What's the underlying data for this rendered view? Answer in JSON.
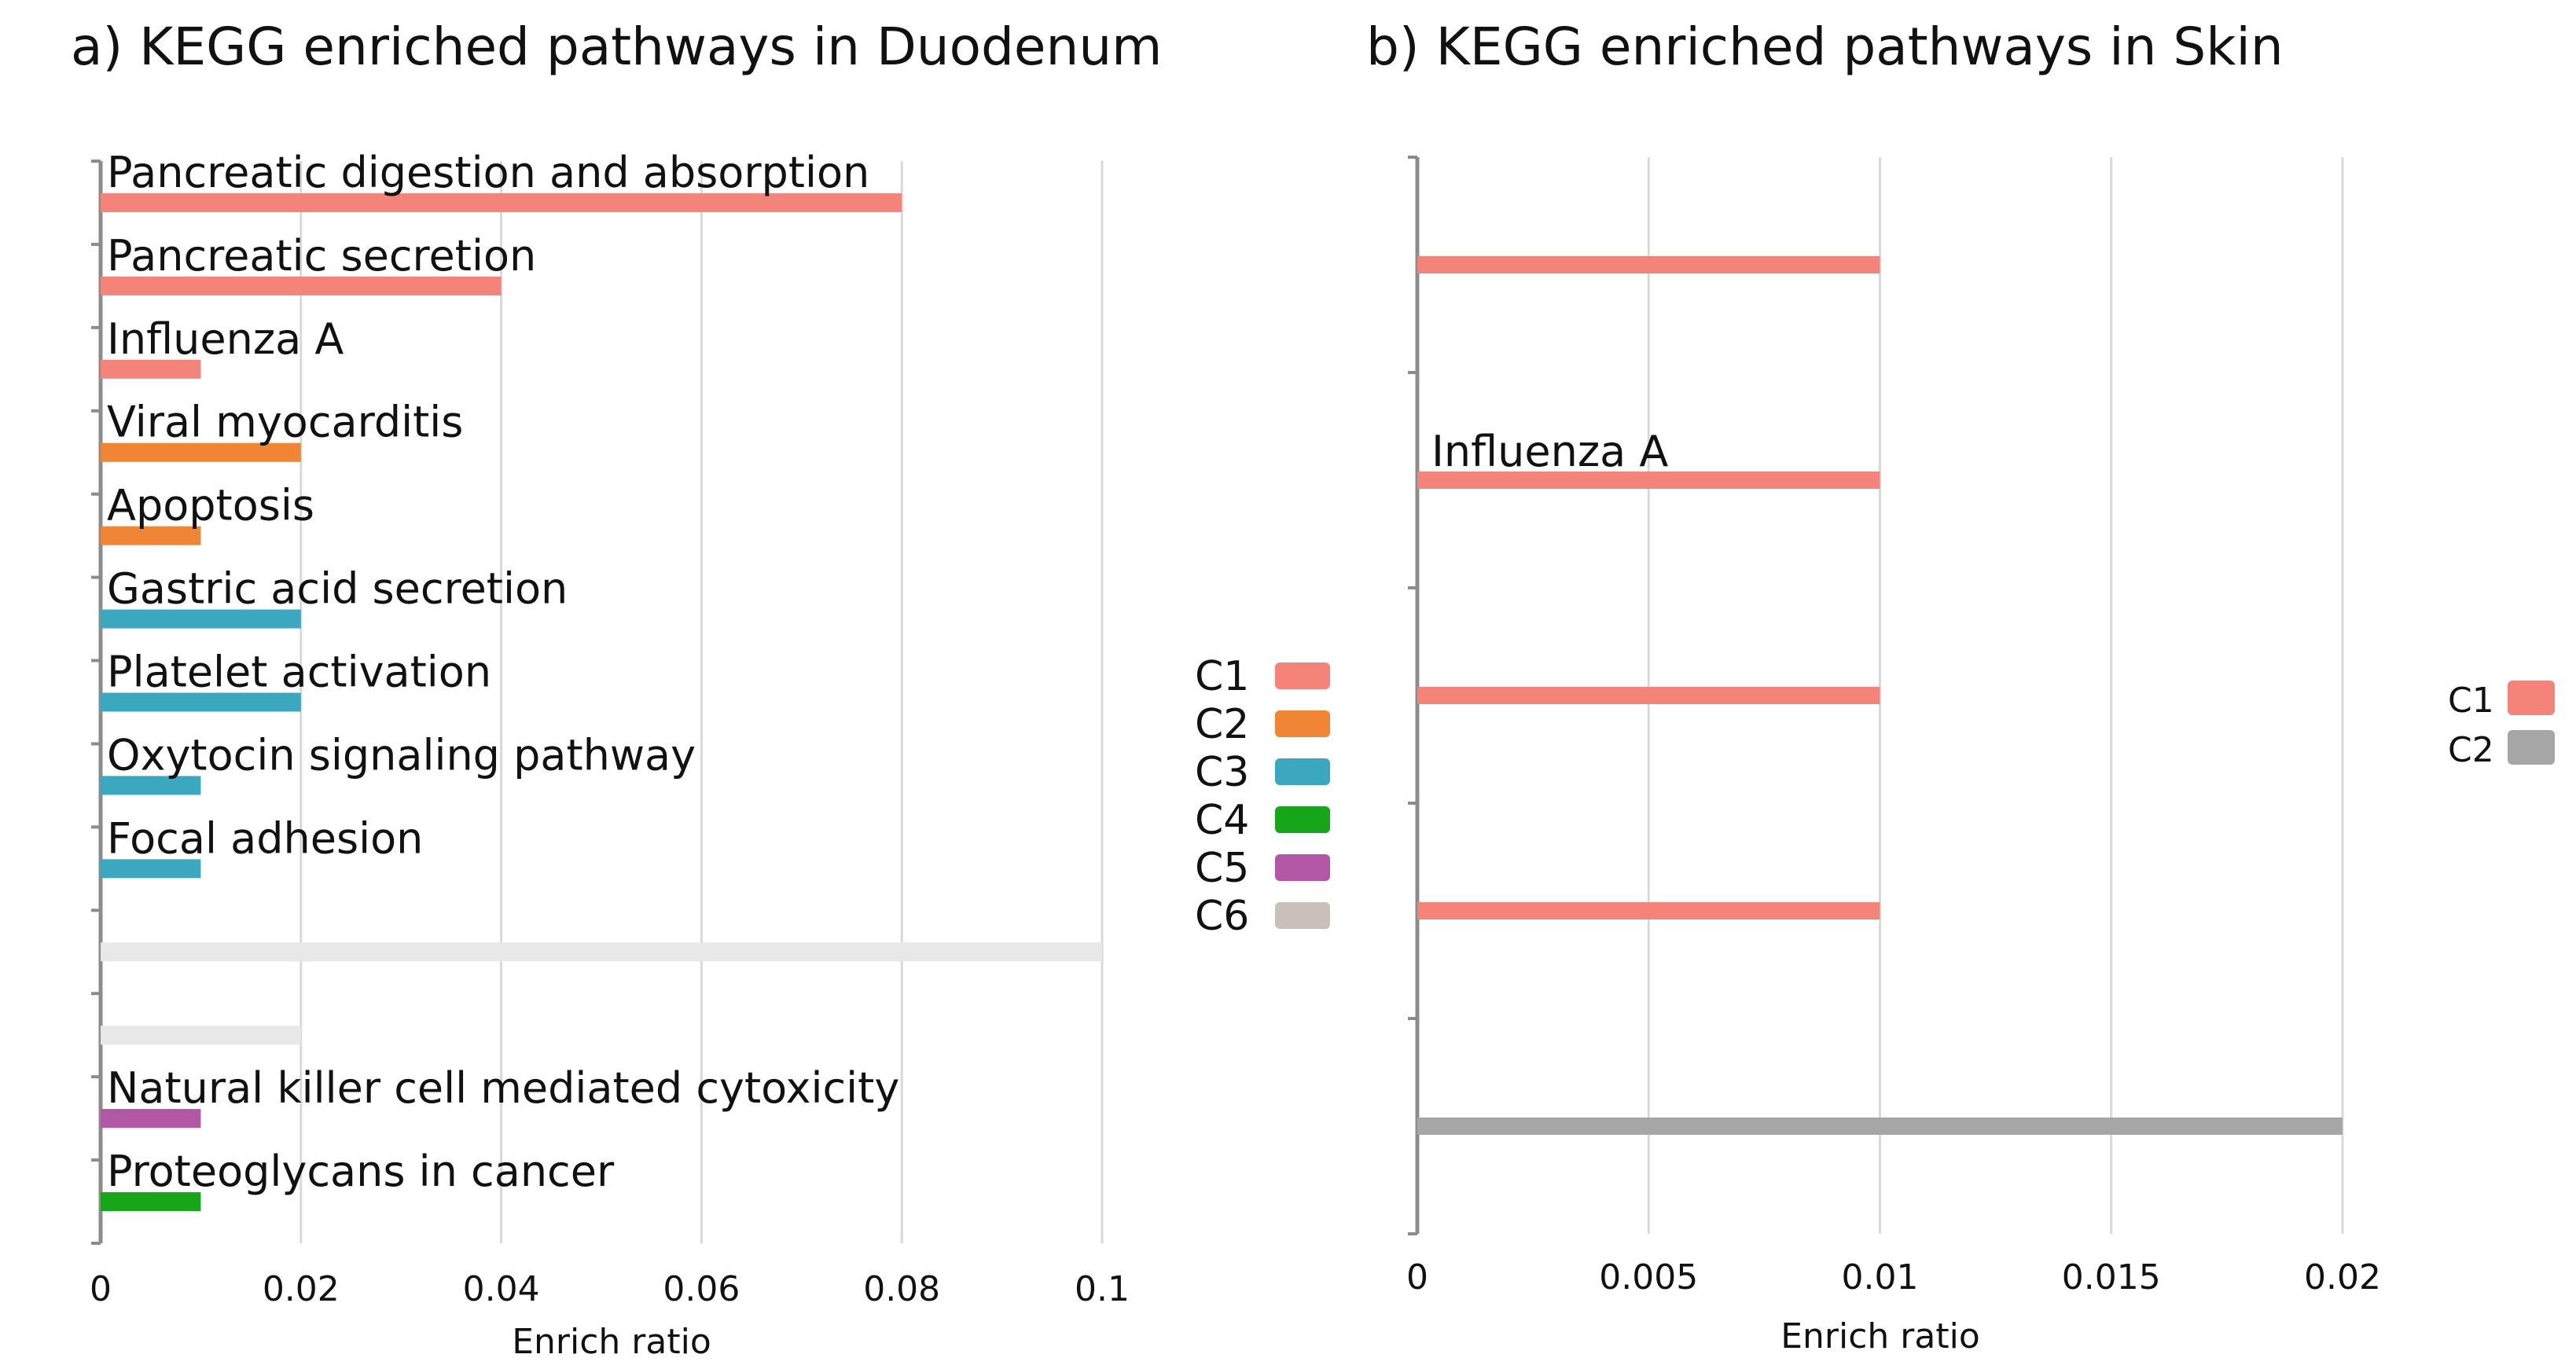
{
  "chart_data": [
    {
      "type": "bar",
      "orientation": "horizontal",
      "title": "a) KEGG enriched pathways in Duodenum",
      "xlabel": "Enrich ratio",
      "ylabel": "",
      "xlim": [
        0,
        0.1
      ],
      "xticks": [
        0,
        0.02,
        0.04,
        0.06,
        0.08,
        0.1
      ],
      "xtick_labels": [
        "0",
        "0.02",
        "0.04",
        "0.06",
        "0.08",
        "0.1"
      ],
      "grid": true,
      "legend_position": "right",
      "legend": [
        {
          "name": "C1",
          "color": "#f4837a"
        },
        {
          "name": "C2",
          "color": "#f08535"
        },
        {
          "name": "C3",
          "color": "#3ba8c0"
        },
        {
          "name": "C4",
          "color": "#17a51a"
        },
        {
          "name": "C5",
          "color": "#b257a5"
        },
        {
          "name": "C6",
          "color": "#c9c1b9"
        }
      ],
      "bars": [
        {
          "label": "Pancreatic digestion and absorption",
          "value": 0.08,
          "cluster": "C1",
          "color": "#f4837a"
        },
        {
          "label": "Pancreatic secretion",
          "value": 0.04,
          "cluster": "C1",
          "color": "#f4837a"
        },
        {
          "label": "Influenza A",
          "value": 0.01,
          "cluster": "C1",
          "color": "#f4837a"
        },
        {
          "label": "Viral myocarditis",
          "value": 0.02,
          "cluster": "C2",
          "color": "#f08535"
        },
        {
          "label": "Apoptosis",
          "value": 0.01,
          "cluster": "C2",
          "color": "#f08535"
        },
        {
          "label": "Gastric acid secretion",
          "value": 0.02,
          "cluster": "C3",
          "color": "#3ba8c0"
        },
        {
          "label": "Platelet activation",
          "value": 0.02,
          "cluster": "C3",
          "color": "#3ba8c0"
        },
        {
          "label": "Oxytocin signaling pathway",
          "value": 0.01,
          "cluster": "C3",
          "color": "#3ba8c0"
        },
        {
          "label": "Focal adhesion",
          "value": 0.01,
          "cluster": "C3",
          "color": "#3ba8c0"
        },
        {
          "label": "",
          "value": 0.1,
          "cluster": "",
          "color": "#e8e8e8"
        },
        {
          "label": "",
          "value": 0.02,
          "cluster": "",
          "color": "#e8e8e8"
        },
        {
          "label": "Natural killer cell mediated cytoxicity",
          "value": 0.01,
          "cluster": "C5",
          "color": "#b257a5"
        },
        {
          "label": "Proteoglycans in cancer",
          "value": 0.01,
          "cluster": "C4",
          "color": "#17a51a"
        }
      ]
    },
    {
      "type": "bar",
      "orientation": "horizontal",
      "title": "b) KEGG enriched pathways in Skin",
      "xlabel": "Enrich ratio",
      "ylabel": "",
      "xlim": [
        0,
        0.02
      ],
      "xticks": [
        0,
        0.005,
        0.01,
        0.015,
        0.02
      ],
      "xtick_labels": [
        "0",
        "0.005",
        "0.01",
        "0.015",
        "0.02"
      ],
      "grid": true,
      "legend_position": "right",
      "legend": [
        {
          "name": "C1",
          "color": "#f4837a"
        },
        {
          "name": "C2",
          "color": "#a6a6a6"
        }
      ],
      "bars": [
        {
          "label": "",
          "value": 0.01,
          "cluster": "C1",
          "color": "#f4837a"
        },
        {
          "label": "Influenza A",
          "value": 0.01,
          "cluster": "C1",
          "color": "#f4837a"
        },
        {
          "label": "",
          "value": 0.01,
          "cluster": "C1",
          "color": "#f4837a"
        },
        {
          "label": "",
          "value": 0.01,
          "cluster": "C1",
          "color": "#f4837a"
        },
        {
          "label": "",
          "value": 0.02,
          "cluster": "C2",
          "color": "#a6a6a6"
        }
      ]
    }
  ]
}
